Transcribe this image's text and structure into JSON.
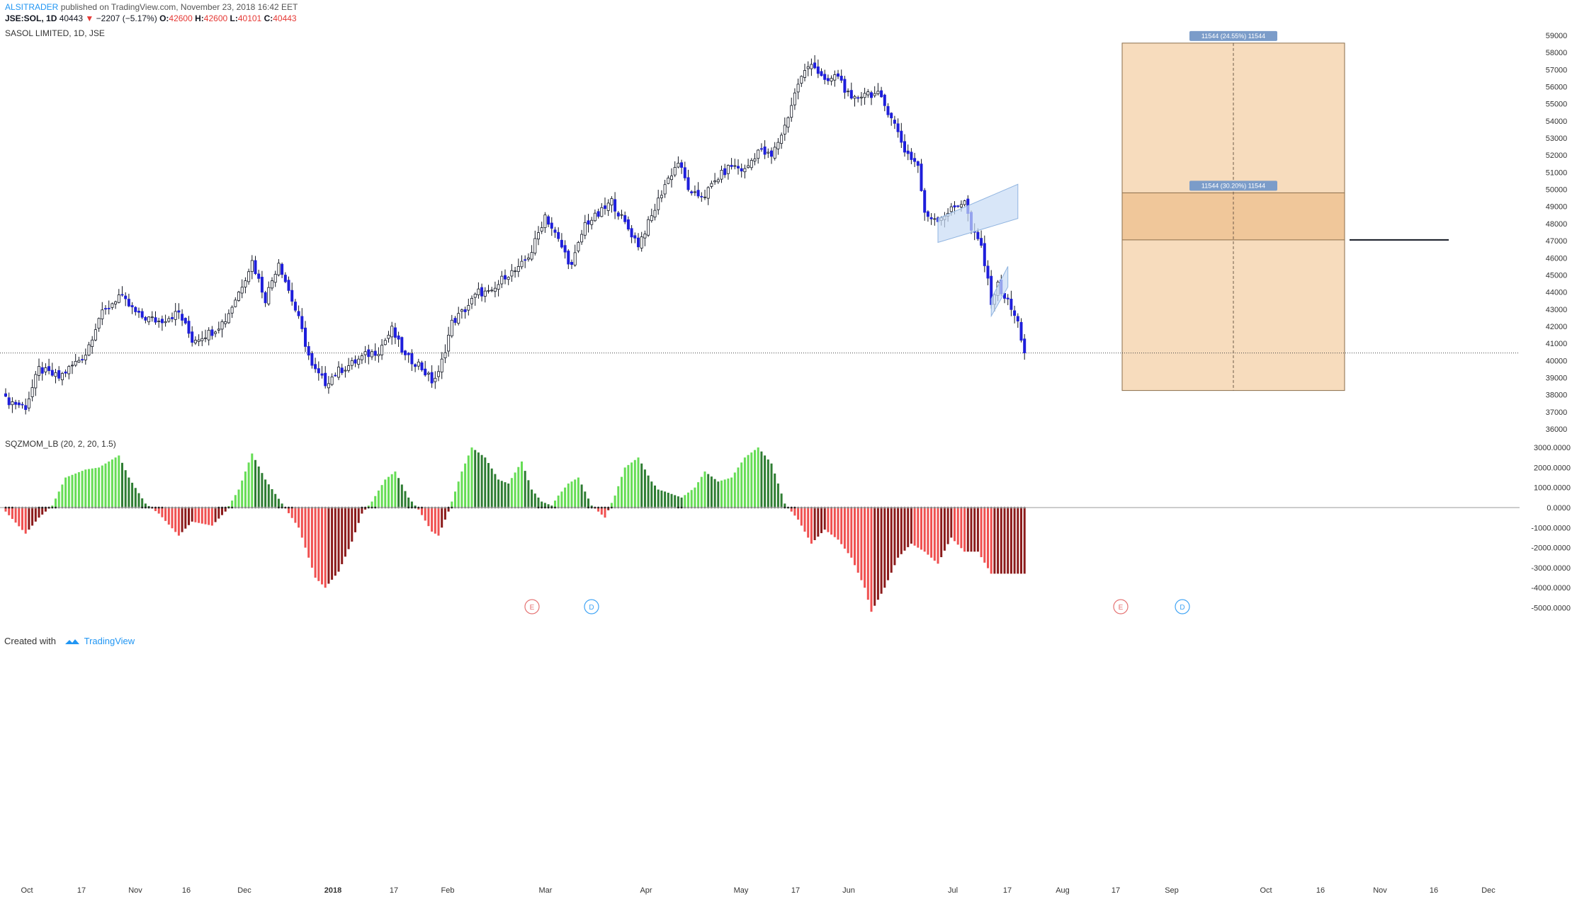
{
  "header": {
    "author": "ALSITRADER",
    "published": "published on TradingView.com, November 23, 2018 16:42 EET",
    "symbol": "JSE:SOL, 1D",
    "last": "40443",
    "change": "−2207 (−5.17%)",
    "o_label": "O:",
    "o": "42600",
    "h_label": "H:",
    "h": "42600",
    "l_label": "L:",
    "l": "40101",
    "c_label": "C:",
    "c": "40443",
    "down_icon": "down-triangle-icon"
  },
  "symbol_title": "SASOL LIMITED, 1D, JSE",
  "indicator_title": "SQZMOM_LB (20, 2, 20, 1.5)",
  "footer": {
    "created_with": "Created with",
    "brand": "TradingView",
    "logo_icon": "tradingview-logo-icon"
  },
  "measurements": [
    {
      "label": "11544 (24.55%) 11544",
      "top": 58550,
      "bottom": 38250
    },
    {
      "label": "11544 (30.20%) 11544",
      "top": 49800,
      "bottom": 47050
    }
  ],
  "events": [
    {
      "label": "E",
      "color": "#e57373"
    },
    {
      "label": "D",
      "color": "#42a5f5"
    },
    {
      "label": "E",
      "color": "#e57373"
    },
    {
      "label": "D",
      "color": "#42a5f5"
    }
  ],
  "colors": {
    "bull_body": "#ffffff",
    "bear_body": "#1e1edb",
    "wick": "#131722",
    "measure_fill": "#f7dcbd",
    "measure_inner": "#f0c79a",
    "channel": "#c8dcf5",
    "hist_up_strong": "#66dd55",
    "hist_up_weak": "#2e7d32",
    "hist_dn_strong": "#f05050",
    "hist_dn_weak": "#8b1a1a"
  },
  "chart_data": [
    {
      "type": "candlestick",
      "title": "SASOL LIMITED, 1D, JSE",
      "y_axis_ticks": [
        59000,
        58000,
        57000,
        56000,
        55000,
        54000,
        53000,
        52000,
        51000,
        50000,
        49000,
        48000,
        47000,
        46000,
        45000,
        44000,
        43000,
        42000,
        41000,
        40000,
        39000,
        38000,
        37000,
        36000
      ],
      "ylim": [
        36000,
        59000
      ],
      "x_labels": [
        "Oct",
        "17",
        "Nov",
        "16",
        "Dec",
        "2018",
        "17",
        "Feb",
        "Mar",
        "Apr",
        "May",
        "17",
        "Jun",
        "Jul",
        "17",
        "Aug",
        "17",
        "Sep",
        "Oct",
        "16",
        "Nov",
        "16",
        "Dec"
      ],
      "close_level": 40443,
      "trend_closes": [
        [
          0,
          37700
        ],
        [
          6,
          37300
        ],
        [
          10,
          39500
        ],
        [
          16,
          39000
        ],
        [
          24,
          40400
        ],
        [
          28,
          42500
        ],
        [
          34,
          43800
        ],
        [
          40,
          42600
        ],
        [
          46,
          42300
        ],
        [
          52,
          42800
        ],
        [
          56,
          41200
        ],
        [
          62,
          41700
        ],
        [
          66,
          42400
        ],
        [
          70,
          44000
        ],
        [
          74,
          45800
        ],
        [
          78,
          43600
        ],
        [
          82,
          45800
        ],
        [
          88,
          42400
        ],
        [
          92,
          39600
        ],
        [
          96,
          38700
        ],
        [
          100,
          39400
        ],
        [
          104,
          39800
        ],
        [
          108,
          40300
        ],
        [
          112,
          40600
        ],
        [
          116,
          41800
        ],
        [
          120,
          40200
        ],
        [
          124,
          39800
        ],
        [
          128,
          38800
        ],
        [
          130,
          39200
        ],
        [
          134,
          42200
        ],
        [
          138,
          43000
        ],
        [
          142,
          44000
        ],
        [
          146,
          43900
        ],
        [
          150,
          45000
        ],
        [
          154,
          45300
        ],
        [
          158,
          46400
        ],
        [
          162,
          48500
        ],
        [
          166,
          47000
        ],
        [
          170,
          45500
        ],
        [
          174,
          48000
        ],
        [
          178,
          48500
        ],
        [
          182,
          49300
        ],
        [
          186,
          48000
        ],
        [
          190,
          46800
        ],
        [
          194,
          48400
        ],
        [
          198,
          50300
        ],
        [
          202,
          51600
        ],
        [
          206,
          49600
        ],
        [
          210,
          49700
        ],
        [
          214,
          50700
        ],
        [
          218,
          51400
        ],
        [
          222,
          51100
        ],
        [
          226,
          52300
        ],
        [
          230,
          51900
        ],
        [
          234,
          53700
        ],
        [
          238,
          56200
        ],
        [
          242,
          57500
        ],
        [
          246,
          56200
        ],
        [
          250,
          56700
        ],
        [
          254,
          55100
        ],
        [
          258,
          55700
        ],
        [
          262,
          55500
        ],
        [
          266,
          54300
        ],
        [
          270,
          52300
        ],
        [
          274,
          51400
        ],
        [
          276,
          48500
        ],
        [
          280,
          48300
        ],
        [
          284,
          48800
        ],
        [
          288,
          49400
        ],
        [
          290,
          47600
        ],
        [
          293,
          46700
        ],
        [
          296,
          43500
        ],
        [
          298,
          44400
        ],
        [
          301,
          43400
        ],
        [
          304,
          42200
        ],
        [
          306,
          40443
        ]
      ]
    },
    {
      "type": "bar",
      "title": "SQZMOM_LB (20, 2, 20, 1.5)",
      "y_axis_ticks": [
        3000,
        2000,
        1000,
        0,
        -1000,
        -2000,
        -3000,
        -4000,
        -5000
      ],
      "ylim": [
        -5800,
        3200
      ],
      "momentum_keypoints": [
        [
          0,
          -200
        ],
        [
          6,
          -1300
        ],
        [
          10,
          -500
        ],
        [
          14,
          100
        ],
        [
          18,
          1500
        ],
        [
          24,
          1900
        ],
        [
          28,
          2000
        ],
        [
          34,
          2600
        ],
        [
          37,
          1500
        ],
        [
          42,
          200
        ],
        [
          46,
          -300
        ],
        [
          52,
          -1400
        ],
        [
          56,
          -700
        ],
        [
          62,
          -900
        ],
        [
          66,
          -200
        ],
        [
          70,
          900
        ],
        [
          74,
          2700
        ],
        [
          78,
          1400
        ],
        [
          83,
          200
        ],
        [
          88,
          -1000
        ],
        [
          93,
          -3500
        ],
        [
          96,
          -4000
        ],
        [
          100,
          -3200
        ],
        [
          104,
          -1700
        ],
        [
          107,
          -300
        ],
        [
          110,
          300
        ],
        [
          114,
          1400
        ],
        [
          117,
          1800
        ],
        [
          121,
          500
        ],
        [
          124,
          -100
        ],
        [
          128,
          -1200
        ],
        [
          130,
          -1400
        ],
        [
          133,
          -200
        ],
        [
          137,
          1800
        ],
        [
          140,
          3000
        ],
        [
          144,
          2500
        ],
        [
          148,
          1400
        ],
        [
          151,
          1200
        ],
        [
          155,
          2300
        ],
        [
          158,
          900
        ],
        [
          161,
          300
        ],
        [
          164,
          100
        ],
        [
          166,
          600
        ],
        [
          169,
          1200
        ],
        [
          172,
          1500
        ],
        [
          176,
          100
        ],
        [
          180,
          -500
        ],
        [
          183,
          600
        ],
        [
          186,
          2000
        ],
        [
          190,
          2500
        ],
        [
          194,
          1300
        ],
        [
          196,
          900
        ],
        [
          198,
          800
        ],
        [
          203,
          500
        ],
        [
          207,
          1000
        ],
        [
          210,
          1800
        ],
        [
          214,
          1300
        ],
        [
          218,
          1500
        ],
        [
          222,
          2500
        ],
        [
          226,
          3000
        ],
        [
          230,
          2200
        ],
        [
          234,
          200
        ],
        [
          238,
          -600
        ],
        [
          242,
          -1800
        ],
        [
          246,
          -1100
        ],
        [
          250,
          -1600
        ],
        [
          254,
          -2500
        ],
        [
          258,
          -4000
        ],
        [
          260,
          -5200
        ],
        [
          264,
          -4000
        ],
        [
          268,
          -2500
        ],
        [
          272,
          -1800
        ],
        [
          276,
          -2200
        ],
        [
          280,
          -2800
        ],
        [
          284,
          -1500
        ],
        [
          288,
          -2200
        ],
        [
          292,
          -2200
        ],
        [
          296,
          -3300
        ]
      ]
    }
  ]
}
